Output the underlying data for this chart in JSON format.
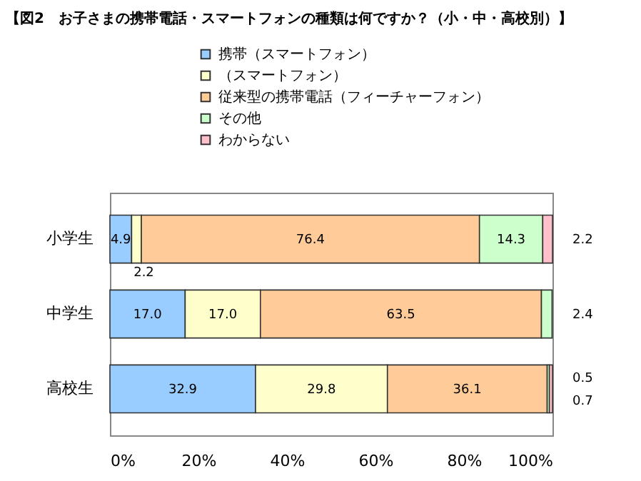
{
  "chart_data": {
    "type": "bar",
    "orientation": "horizontal",
    "stacked": true,
    "title": "【図2　お子さまの携帯電話・スマートフォンの種類は何ですか？（小・中・高校別）】",
    "categories": [
      "小学生",
      "中学生",
      "高校生"
    ],
    "series": [
      {
        "name": "携帯（スマートフォン）",
        "color": "#99ccff",
        "values": [
          4.9,
          17.0,
          32.9
        ]
      },
      {
        "name": "（スマートフォン）",
        "color": "#ffffcc",
        "values": [
          2.2,
          17.0,
          29.8
        ]
      },
      {
        "name": "従来型の携帯電話（フィーチャーフォン）",
        "color": "#ffcc99",
        "values": [
          76.4,
          63.5,
          36.1
        ]
      },
      {
        "name": "その他",
        "color": "#ccffcc",
        "values": [
          14.3,
          2.4,
          0.5
        ]
      },
      {
        "name": "わからない",
        "color": "#ffc0cb",
        "values": [
          2.2,
          null,
          0.7
        ]
      }
    ],
    "xlim": [
      0,
      100
    ],
    "xticks": [
      {
        "value": 0,
        "label": "0%"
      },
      {
        "value": 20,
        "label": "20%"
      },
      {
        "value": 40,
        "label": "40%"
      },
      {
        "value": 60,
        "label": "60%"
      },
      {
        "value": 80,
        "label": "80%"
      },
      {
        "value": 100,
        "label": "100%"
      }
    ],
    "value_labels": [
      [
        "4.9",
        "17.0",
        "32.9"
      ],
      [
        "2.2",
        "17.0",
        "29.8"
      ],
      [
        "76.4",
        "63.5",
        "36.1"
      ],
      [
        "14.3",
        "2.4",
        "0.5"
      ],
      [
        "2.2",
        null,
        "0.7"
      ]
    ],
    "legend": "top",
    "grid": false
  }
}
